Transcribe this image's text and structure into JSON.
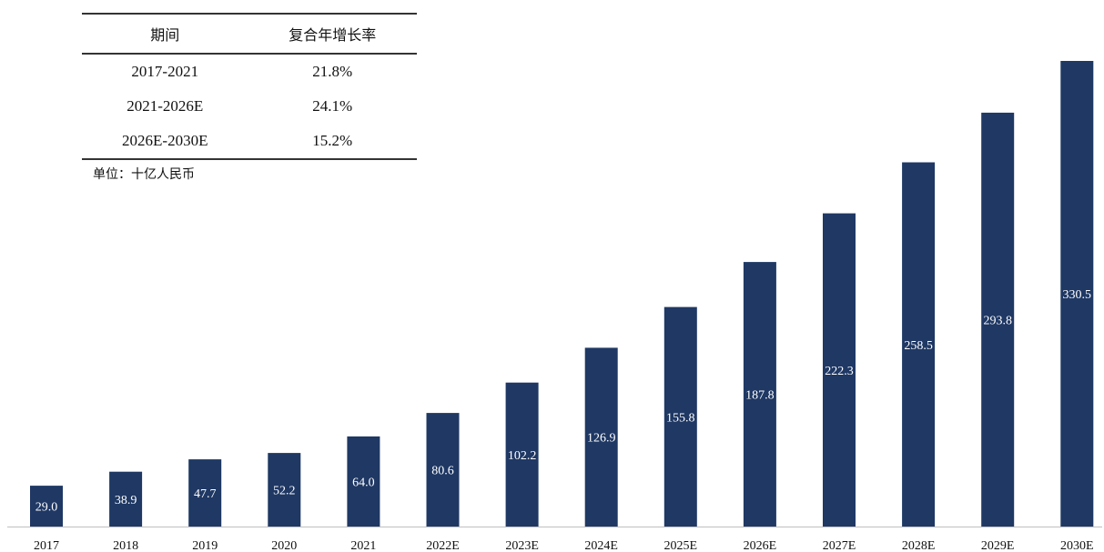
{
  "table": {
    "headers": [
      "期间",
      "复合年增长率"
    ],
    "rows": [
      [
        "2017-2021",
        "21.8%"
      ],
      [
        "2021-2026E",
        "24.1%"
      ],
      [
        "2026E-2030E",
        "15.2%"
      ]
    ]
  },
  "unit_note": "单位：十亿人民币",
  "chart_data": {
    "type": "bar",
    "categories": [
      "2017",
      "2018",
      "2019",
      "2020",
      "2021",
      "2022E",
      "2023E",
      "2024E",
      "2025E",
      "2026E",
      "2027E",
      "2028E",
      "2029E",
      "2030E"
    ],
    "values": [
      29.0,
      38.9,
      47.7,
      52.2,
      64.0,
      80.6,
      102.2,
      126.9,
      155.8,
      187.8,
      222.3,
      258.5,
      293.8,
      330.5
    ],
    "value_labels": [
      "29.0",
      "38.9",
      "47.7",
      "52.2",
      "64.0",
      "80.6",
      "102.2",
      "126.9",
      "155.8",
      "187.8",
      "222.3",
      "258.5",
      "293.8",
      "330.5"
    ],
    "title": "",
    "xlabel": "",
    "ylabel": "",
    "ylim": [
      0,
      330.5
    ],
    "grid": false,
    "legend": "none",
    "colors": {
      "bar": "#1f3864",
      "label": "#ffffff",
      "axis": "#bfbfbf"
    }
  }
}
